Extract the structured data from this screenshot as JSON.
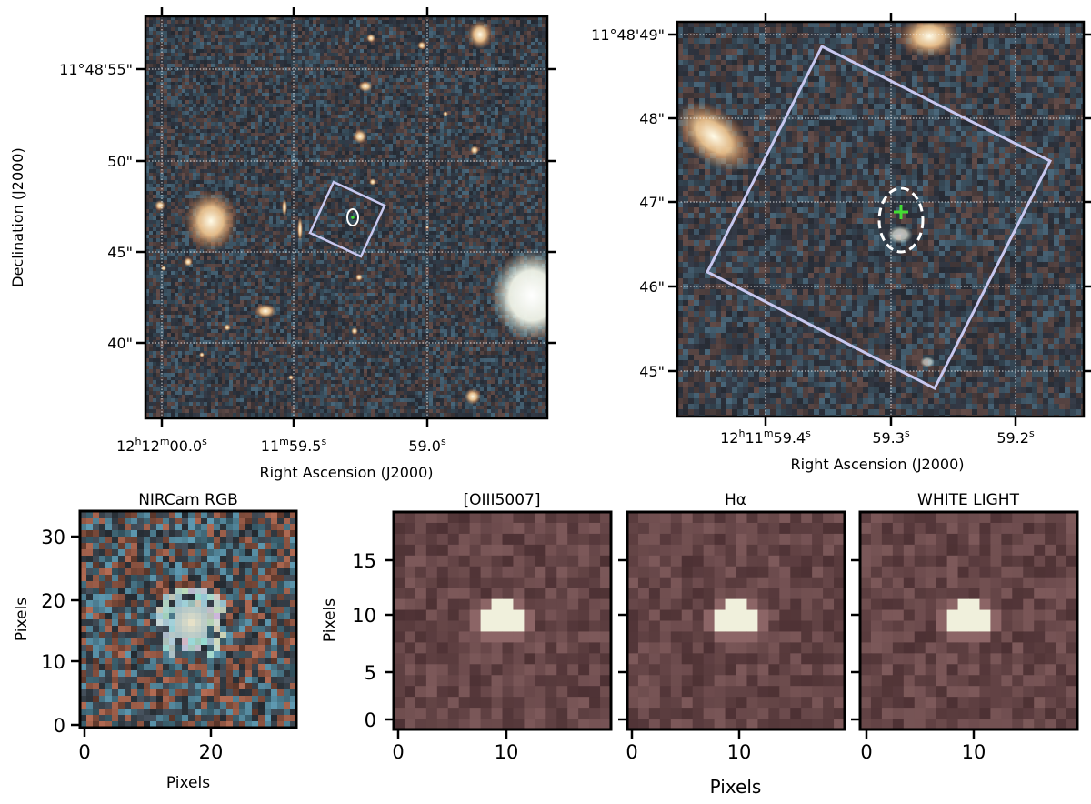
{
  "panel_a": {
    "xlabel": "Right Ascension (J2000)",
    "ylabel": "Declination (J2000)",
    "xticks": [
      {
        "h": "12",
        "hs": "h",
        "m": "12",
        "ms": "m",
        "s": "00.0",
        "ss": "s"
      },
      {
        "h": "",
        "hs": "",
        "m": "11",
        "ms": "m",
        "s": "59.5",
        "ss": "s"
      },
      {
        "h": "",
        "hs": "",
        "m": "",
        "ms": "",
        "s": "59.0",
        "ss": "s"
      }
    ],
    "yticks": [
      "11°48'55\"",
      "50\"",
      "45\"",
      "40\""
    ]
  },
  "panel_b": {
    "xlabel": "Right Ascension (J2000)",
    "xticks": [
      {
        "h": "12",
        "hs": "h",
        "m": "11",
        "ms": "m",
        "s": "59.4",
        "ss": "s"
      },
      {
        "h": "",
        "hs": "",
        "m": "",
        "ms": "",
        "s": "59.3",
        "ss": "s"
      },
      {
        "h": "",
        "hs": "",
        "m": "",
        "ms": "",
        "s": "59.2",
        "ss": "s"
      }
    ],
    "yticks": [
      "11°48'49\"",
      "48\"",
      "47\"",
      "46\"",
      "45\""
    ]
  },
  "bottom": {
    "nircam": {
      "title": "NIRCam RGB",
      "xlabel": "Pixels",
      "ylabel": "Pixels",
      "xticks": [
        "0",
        "20"
      ],
      "yticks": [
        "0",
        "10",
        "20",
        "30"
      ]
    },
    "oiii": {
      "title": "[OIII5007]",
      "ylabel": "Pixels",
      "xticks": [
        "0",
        "10"
      ],
      "yticks": [
        "0",
        "5",
        "10",
        "15"
      ]
    },
    "halpha": {
      "title": "Hα",
      "xticks": [
        "0",
        "10"
      ]
    },
    "white": {
      "title": "WHITE LIGHT",
      "xticks": [
        "0",
        "10"
      ]
    },
    "shared_xlabel": "Pixels"
  },
  "colors": {
    "aperture": "#c8c8f0",
    "ellipse": "#ffffff",
    "marker": "#44dd33",
    "map_low": "#2a1418",
    "map_high": "#f0f0dc"
  }
}
